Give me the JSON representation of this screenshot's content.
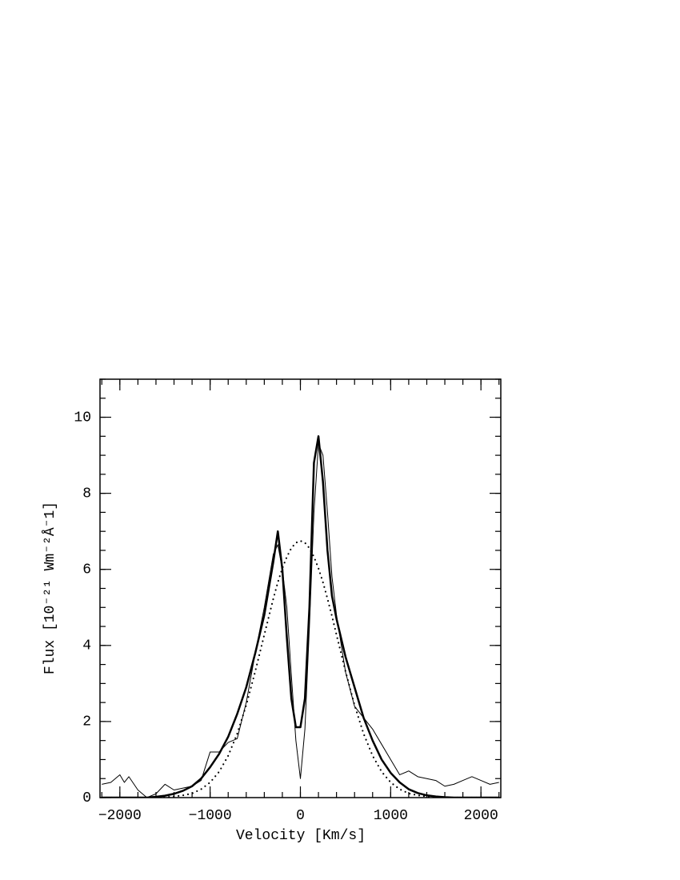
{
  "chart_data": {
    "type": "line",
    "xlabel": "Velocity [Km/s]",
    "ylabel": "Flux [10⁻²¹ Wm⁻²Å⁻1]",
    "x": [
      -2200,
      -2100,
      -2000,
      -1950,
      -1900,
      -1800,
      -1700,
      -1600,
      -1500,
      -1400,
      -1300,
      -1200,
      -1100,
      -1000,
      -900,
      -800,
      -700,
      -600,
      -500,
      -400,
      -300,
      -250,
      -200,
      -150,
      -100,
      -50,
      0,
      50,
      100,
      150,
      200,
      250,
      300,
      350,
      400,
      500,
      600,
      700,
      800,
      900,
      1000,
      1100,
      1200,
      1300,
      1400,
      1500,
      1600,
      1700,
      1800,
      1900,
      2000,
      2100,
      2200
    ],
    "series": [
      {
        "color": "#000000",
        "line_width": 1,
        "dash": "solid",
        "values": [
          0.35,
          0.4,
          0.6,
          0.4,
          0.55,
          0.2,
          0,
          0.1,
          0.35,
          0.2,
          0.25,
          0.3,
          0.45,
          1.2,
          1.2,
          1.45,
          1.55,
          2.5,
          3.8,
          5.0,
          6.4,
          6.65,
          6.0,
          5.0,
          3.2,
          1.5,
          0.5,
          1.8,
          4.5,
          7.5,
          9.3,
          9.0,
          7.5,
          5.8,
          4.8,
          3.3,
          2.4,
          2.1,
          1.8,
          1.4,
          1.0,
          0.6,
          0.7,
          0.55,
          0.5,
          0.45,
          0.3,
          0.35,
          0.45,
          0.55,
          0.45,
          0.35,
          0.4
        ]
      },
      {
        "color": "#000000",
        "line_width": 2.5,
        "dash": "solid",
        "values": [
          0,
          0,
          0,
          0,
          0,
          0,
          0,
          0.02,
          0.05,
          0.1,
          0.18,
          0.3,
          0.5,
          0.8,
          1.15,
          1.6,
          2.2,
          2.9,
          3.8,
          4.8,
          6.2,
          7.0,
          6.0,
          4.2,
          2.6,
          1.85,
          1.85,
          2.6,
          5.0,
          8.8,
          9.5,
          8.3,
          6.5,
          5.3,
          4.7,
          3.7,
          2.9,
          2.1,
          1.5,
          1.0,
          0.65,
          0.4,
          0.22,
          0.12,
          0.06,
          0.03,
          0.01,
          0,
          0,
          0,
          0,
          0,
          0
        ]
      },
      {
        "color": "#000000",
        "line_width": 2.2,
        "dash": "dotted",
        "values": [
          0,
          0,
          0,
          0,
          0,
          0,
          0,
          0,
          0.01,
          0.03,
          0.06,
          0.11,
          0.22,
          0.4,
          0.68,
          1.1,
          1.68,
          2.43,
          3.32,
          4.28,
          5.23,
          5.66,
          6.03,
          6.33,
          6.56,
          6.7,
          6.75,
          6.7,
          6.56,
          6.33,
          6.03,
          5.66,
          5.23,
          4.77,
          4.28,
          3.32,
          2.43,
          1.68,
          1.1,
          0.68,
          0.4,
          0.22,
          0.11,
          0.06,
          0.03,
          0.01,
          0,
          0,
          0,
          0,
          0,
          0,
          0
        ]
      }
    ],
    "xlim": [
      -2220,
      2220
    ],
    "ylim": [
      0,
      11
    ],
    "xticks": [
      {
        "value": -2000,
        "label": "−2000"
      },
      {
        "value": -1000,
        "label": "−1000"
      },
      0,
      1000,
      2000
    ],
    "yticks": [
      0,
      2,
      4,
      6,
      8,
      10
    ],
    "grid": false
  }
}
